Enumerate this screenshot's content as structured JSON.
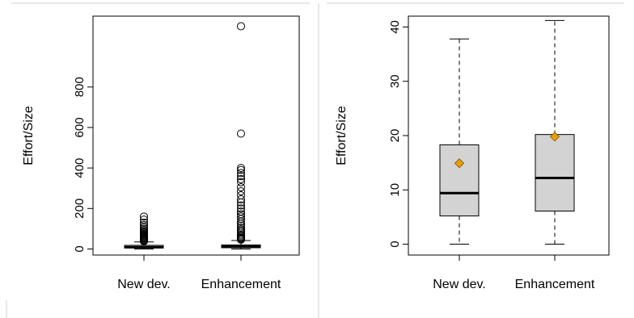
{
  "chart_data": [
    {
      "type": "boxplot",
      "ylabel": "Effort/Size",
      "categories": [
        "New dev.",
        "Enhancement"
      ],
      "ylim": [
        -30,
        1150
      ],
      "yticks": [
        0,
        200,
        400,
        600,
        800
      ],
      "boxes": [
        {
          "category": "New dev.",
          "whisker_low": 0,
          "q1": 5,
          "median": 9,
          "q3": 18,
          "whisker_high": 35,
          "outliers": [
            38,
            42,
            46,
            50,
            54,
            58,
            62,
            66,
            70,
            75,
            80,
            86,
            92,
            100,
            108,
            118,
            130,
            145,
            160
          ]
        },
        {
          "category": "Enhancement",
          "whisker_low": 0,
          "q1": 6,
          "median": 12,
          "q3": 20,
          "whisker_high": 42,
          "outliers": [
            46,
            50,
            55,
            60,
            66,
            72,
            80,
            88,
            96,
            105,
            115,
            125,
            135,
            148,
            160,
            172,
            185,
            200,
            215,
            230,
            245,
            265,
            285,
            305,
            330,
            345,
            360,
            375,
            390,
            400,
            570,
            1100
          ]
        }
      ]
    },
    {
      "type": "boxplot",
      "ylabel": "Effort/Size",
      "categories": [
        "New dev.",
        "Enhancement"
      ],
      "ylim": [
        -2,
        42
      ],
      "yticks": [
        0,
        10,
        20,
        30,
        40
      ],
      "box_fill": "#d3d3d3",
      "mean_color": "#e69f00",
      "boxes": [
        {
          "category": "New dev.",
          "whisker_low": 0,
          "q1": 5.2,
          "median": 9.4,
          "q3": 18.3,
          "whisker_high": 37.8,
          "mean": 14.9
        },
        {
          "category": "Enhancement",
          "whisker_low": 0,
          "q1": 6.1,
          "median": 12.2,
          "q3": 20.2,
          "whisker_high": 41.2,
          "mean": 19.8
        }
      ]
    }
  ]
}
